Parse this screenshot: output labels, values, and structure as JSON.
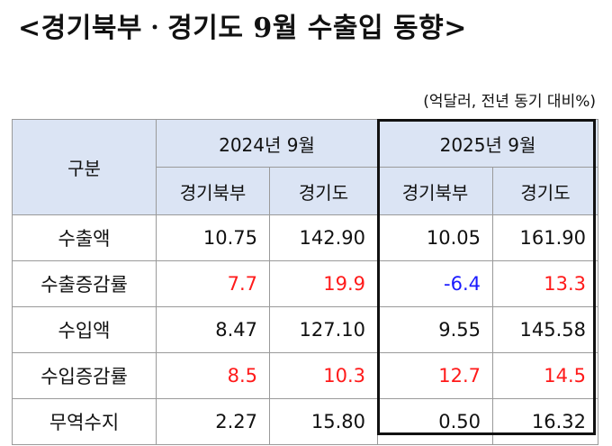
{
  "title": "<경기북부ㆍ경기도 9월 수출입 동향>",
  "unit_note": "(억달러, 전년 동기 대비%)",
  "table": {
    "header_category": "구분",
    "periods": [
      "2024년 9월",
      "2025년 9월"
    ],
    "subheaders": [
      "경기북부",
      "경기도",
      "경기북부",
      "경기도"
    ],
    "rows": [
      {
        "label": "수출액",
        "values": [
          "10.75",
          "142.90",
          "10.05",
          "161.90"
        ]
      },
      {
        "label": "수출증감률",
        "values": [
          "7.7",
          "19.9",
          "-6.4",
          "13.3"
        ]
      },
      {
        "label": "수입액",
        "values": [
          "8.47",
          "127.10",
          "9.55",
          "145.58"
        ]
      },
      {
        "label": "수입증감률",
        "values": [
          "8.5",
          "10.3",
          "12.7",
          "14.5"
        ]
      },
      {
        "label": "무역수지",
        "values": [
          "2.27",
          "15.80",
          "0.50",
          "16.32"
        ]
      }
    ]
  },
  "colors": {
    "header_bg": "#dbe4f4",
    "positive_rate": "#ff1a1a",
    "negative_rate": "#1a1aff"
  }
}
